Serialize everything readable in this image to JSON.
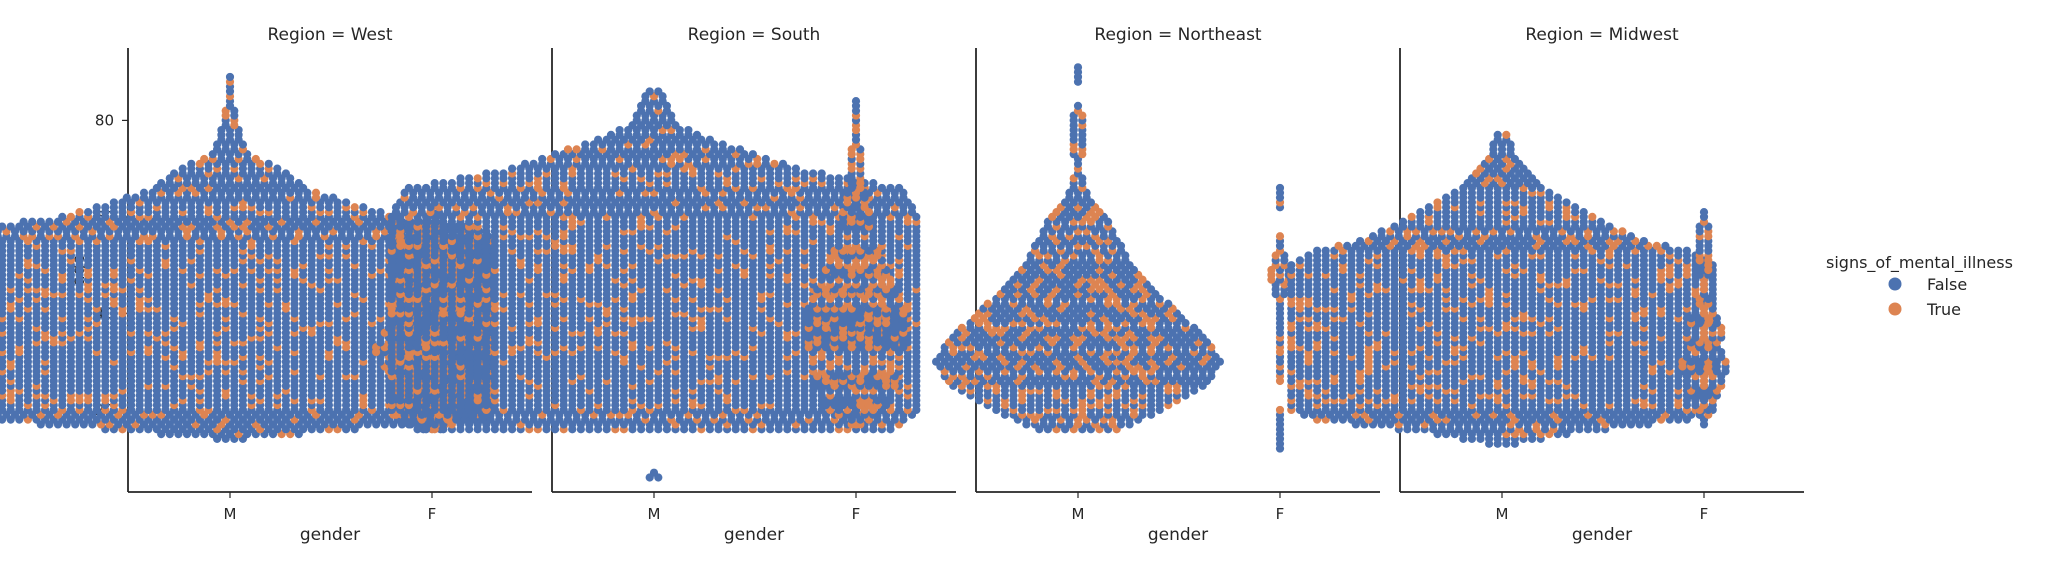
{
  "chart_data": {
    "type": "swarm",
    "facet": "Region",
    "x_label": "gender",
    "y_label": "age",
    "categories": [
      "M",
      "F"
    ],
    "y_ticks": [
      20,
      40,
      60,
      80
    ],
    "ylim": [
      3,
      95
    ],
    "hue": {
      "name": "signs_of_mental_illness",
      "levels": [
        "False",
        "True"
      ],
      "colors": {
        "False": "#4c72b0",
        "True": "#dd8452"
      }
    },
    "legend_position": "right",
    "panels": [
      {
        "title": "Region = West",
        "M": {
          "min": 14,
          "max": 89,
          "n": 780,
          "true_fraction": 0.18,
          "profile": [
            [
              14,
              4
            ],
            [
              16,
              30
            ],
            [
              18,
              60
            ],
            [
              20,
              62
            ],
            [
              25,
              62
            ],
            [
              30,
              62
            ],
            [
              35,
              62
            ],
            [
              40,
              62
            ],
            [
              45,
              62
            ],
            [
              50,
              62
            ],
            [
              55,
              62
            ],
            [
              58,
              58
            ],
            [
              60,
              40
            ],
            [
              63,
              28
            ],
            [
              66,
              18
            ],
            [
              70,
              12
            ],
            [
              73,
              5
            ],
            [
              76,
              3
            ],
            [
              80,
              2
            ],
            [
              84,
              1
            ],
            [
              89,
              1
            ]
          ]
        },
        "F": {
          "min": 16,
          "max": 62,
          "n": 90,
          "true_fraction": 0.45,
          "profile": [
            [
              16,
              3
            ],
            [
              20,
              6
            ],
            [
              25,
              9
            ],
            [
              30,
              13
            ],
            [
              33,
              14
            ],
            [
              36,
              12
            ],
            [
              40,
              8
            ],
            [
              45,
              6
            ],
            [
              50,
              7
            ],
            [
              55,
              4
            ],
            [
              58,
              2
            ],
            [
              62,
              1
            ]
          ]
        }
      },
      {
        "title": "Region = South",
        "M": {
          "min": 6,
          "max": 86,
          "n": 1000,
          "true_fraction": 0.17,
          "profile": [
            [
              6,
              2
            ],
            [
              8,
              0
            ],
            [
              15,
              0
            ],
            [
              16,
              56
            ],
            [
              20,
              62
            ],
            [
              25,
              62
            ],
            [
              30,
              62
            ],
            [
              35,
              62
            ],
            [
              40,
              62
            ],
            [
              45,
              62
            ],
            [
              50,
              62
            ],
            [
              55,
              62
            ],
            [
              60,
              62
            ],
            [
              66,
              58
            ],
            [
              68,
              46
            ],
            [
              70,
              34
            ],
            [
              73,
              24
            ],
            [
              76,
              14
            ],
            [
              79,
              6
            ],
            [
              82,
              4
            ],
            [
              86,
              2
            ]
          ]
        },
        "F": {
          "min": 17,
          "max": 84,
          "n": 110,
          "true_fraction": 0.42,
          "profile": [
            [
              17,
              2
            ],
            [
              20,
              7
            ],
            [
              25,
              10
            ],
            [
              30,
              11
            ],
            [
              35,
              12
            ],
            [
              40,
              12
            ],
            [
              45,
              10
            ],
            [
              50,
              7
            ],
            [
              55,
              5
            ],
            [
              60,
              4
            ],
            [
              63,
              3
            ],
            [
              67,
              2
            ],
            [
              72,
              2
            ],
            [
              76,
              1
            ],
            [
              84,
              1
            ]
          ]
        }
      },
      {
        "title": "Region = Northeast",
        "M": {
          "min": 16,
          "max": 91,
          "n": 420,
          "true_fraction": 0.3,
          "profile": [
            [
              16,
              10
            ],
            [
              20,
              20
            ],
            [
              25,
              30
            ],
            [
              30,
              34
            ],
            [
              35,
              30
            ],
            [
              40,
              24
            ],
            [
              45,
              18
            ],
            [
              50,
              13
            ],
            [
              55,
              10
            ],
            [
              60,
              7
            ],
            [
              63,
              4
            ],
            [
              66,
              2
            ],
            [
              70,
              1
            ],
            [
              75,
              2
            ],
            [
              80,
              2
            ],
            [
              85,
              0
            ],
            [
              91,
              1
            ]
          ]
        },
        "F": {
          "min": 12,
          "max": 66,
          "n": 11,
          "true_fraction": 0.45,
          "profile": [
            [
              12,
              1
            ],
            [
              18,
              1
            ],
            [
              22,
              0
            ],
            [
              30,
              1
            ],
            [
              36,
              1
            ],
            [
              42,
              1
            ],
            [
              48,
              3
            ],
            [
              54,
              1
            ],
            [
              58,
              0
            ],
            [
              66,
              1
            ]
          ]
        }
      },
      {
        "title": "Region = Midwest",
        "M": {
          "min": 13,
          "max": 77,
          "n": 640,
          "true_fraction": 0.2,
          "profile": [
            [
              13,
              4
            ],
            [
              15,
              16
            ],
            [
              18,
              44
            ],
            [
              20,
              50
            ],
            [
              25,
              50
            ],
            [
              30,
              50
            ],
            [
              35,
              50
            ],
            [
              40,
              50
            ],
            [
              45,
              50
            ],
            [
              50,
              50
            ],
            [
              53,
              44
            ],
            [
              55,
              34
            ],
            [
              58,
              26
            ],
            [
              60,
              22
            ],
            [
              63,
              16
            ],
            [
              66,
              10
            ],
            [
              70,
              6
            ],
            [
              73,
              3
            ],
            [
              77,
              2
            ]
          ]
        },
        "F": {
          "min": 17,
          "max": 61,
          "n": 35,
          "true_fraction": 0.4,
          "profile": [
            [
              17,
              1
            ],
            [
              20,
              2
            ],
            [
              25,
              5
            ],
            [
              30,
              6
            ],
            [
              33,
              4
            ],
            [
              37,
              5
            ],
            [
              40,
              3
            ],
            [
              45,
              1
            ],
            [
              50,
              2
            ],
            [
              55,
              2
            ],
            [
              61,
              1
            ]
          ]
        }
      }
    ]
  }
}
